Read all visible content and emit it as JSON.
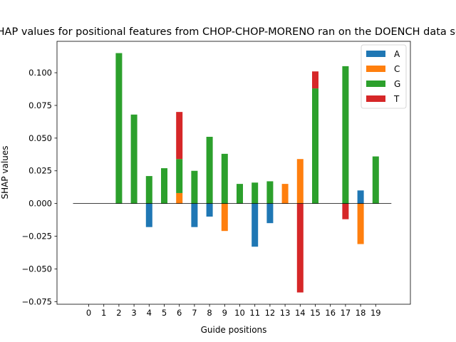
{
  "chart_data": {
    "type": "bar",
    "title": "SHAP values for positional features from CHOP-CHOP-MORENO ran on the DOENCH data set",
    "xlabel": "Guide positions",
    "ylabel": "SHAP values",
    "categories": [
      "0",
      "1",
      "2",
      "3",
      "4",
      "5",
      "6",
      "7",
      "8",
      "9",
      "10",
      "11",
      "12",
      "13",
      "14",
      "15",
      "16",
      "17",
      "18",
      "19"
    ],
    "ylim": [
      -0.077,
      0.124
    ],
    "yticks": [
      -0.075,
      -0.05,
      -0.025,
      0.0,
      0.025,
      0.05,
      0.075,
      0.1
    ],
    "ytick_labels": [
      "−0.075",
      "−0.050",
      "−0.025",
      "0.000",
      "0.025",
      "0.050",
      "0.075",
      "0.100"
    ],
    "legend_position": "top-right",
    "grid": false,
    "zero_line": true,
    "series": [
      {
        "name": "A",
        "color": "#1f77b4",
        "values": [
          0,
          0,
          0,
          0,
          -0.018,
          0,
          0,
          -0.018,
          -0.01,
          0,
          0,
          -0.033,
          -0.015,
          0,
          0,
          0,
          0,
          0,
          0.01,
          0
        ]
      },
      {
        "name": "C",
        "color": "#ff7f0e",
        "values": [
          0,
          0,
          0,
          0,
          0,
          0,
          0.008,
          0,
          0,
          -0.021,
          0,
          0,
          0,
          0.015,
          0.034,
          0,
          0,
          0,
          -0.031,
          0
        ]
      },
      {
        "name": "G",
        "color": "#2ca02c",
        "values": [
          0,
          0,
          0.115,
          0.068,
          0.021,
          0.027,
          0.026,
          0.025,
          0.051,
          0.038,
          0.015,
          0.016,
          0.017,
          0,
          0,
          0.088,
          0,
          0.105,
          0,
          0.036
        ]
      },
      {
        "name": "T",
        "color": "#d62728",
        "values": [
          0,
          0,
          0,
          0,
          0,
          0,
          0.036,
          0,
          0,
          0,
          0,
          0,
          0,
          0,
          -0.068,
          0.013,
          0,
          -0.012,
          0,
          0
        ]
      }
    ]
  }
}
